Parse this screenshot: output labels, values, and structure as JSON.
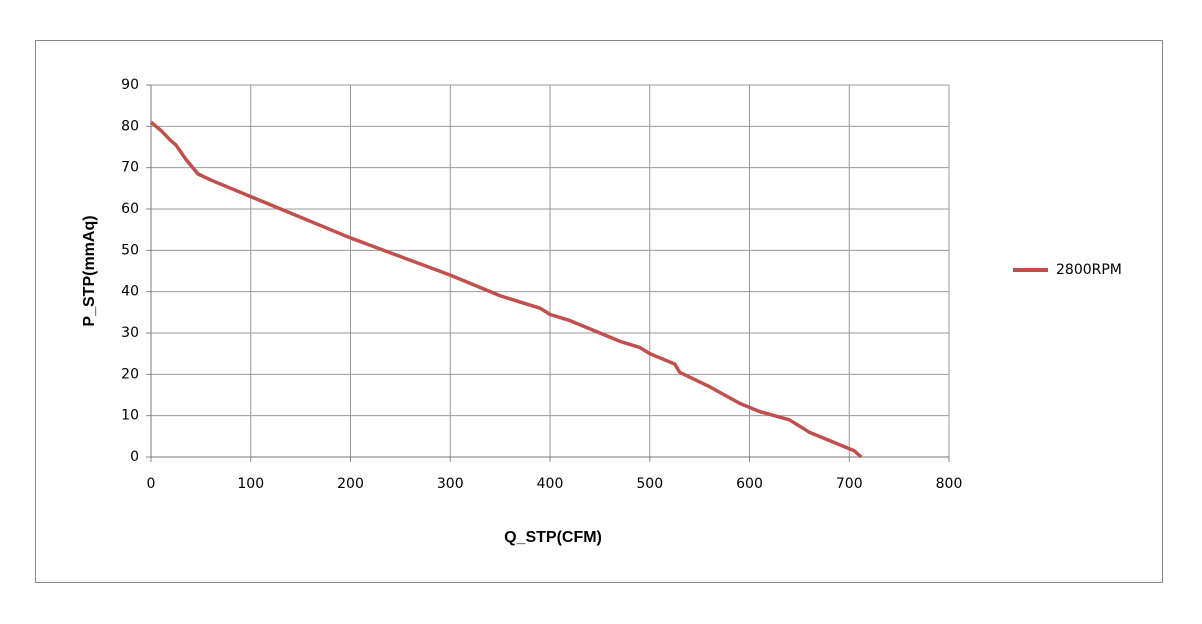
{
  "chart_data": {
    "type": "line",
    "x_label": "Q_STP(CFM)",
    "y_label": "P_STP(mmAq)",
    "series": [
      {
        "name": "2800RPM",
        "color": "#c0504d",
        "x": [
          0,
          10,
          20,
          25,
          35,
          47,
          60,
          100,
          200,
          300,
          320,
          330,
          350,
          390,
          400,
          420,
          450,
          470,
          490,
          500,
          520,
          525,
          530,
          560,
          590,
          610,
          640,
          660,
          670,
          690,
          705,
          712
        ],
        "values": [
          81,
          79,
          76.5,
          75.5,
          72,
          68.5,
          67,
          63,
          53,
          44,
          42,
          41,
          39,
          36,
          34.5,
          33,
          30,
          28,
          26.5,
          25,
          23,
          22.5,
          20.5,
          17,
          13,
          11,
          9,
          6,
          5,
          3,
          1.5,
          0
        ]
      }
    ],
    "xlim": [
      0,
      800
    ],
    "xticks": [
      0,
      100,
      200,
      300,
      400,
      500,
      600,
      700,
      800
    ],
    "ylim": [
      0,
      90
    ],
    "yticks": [
      0,
      10,
      20,
      30,
      40,
      50,
      60,
      70,
      80,
      90
    ],
    "grid": true,
    "legend": "right"
  }
}
